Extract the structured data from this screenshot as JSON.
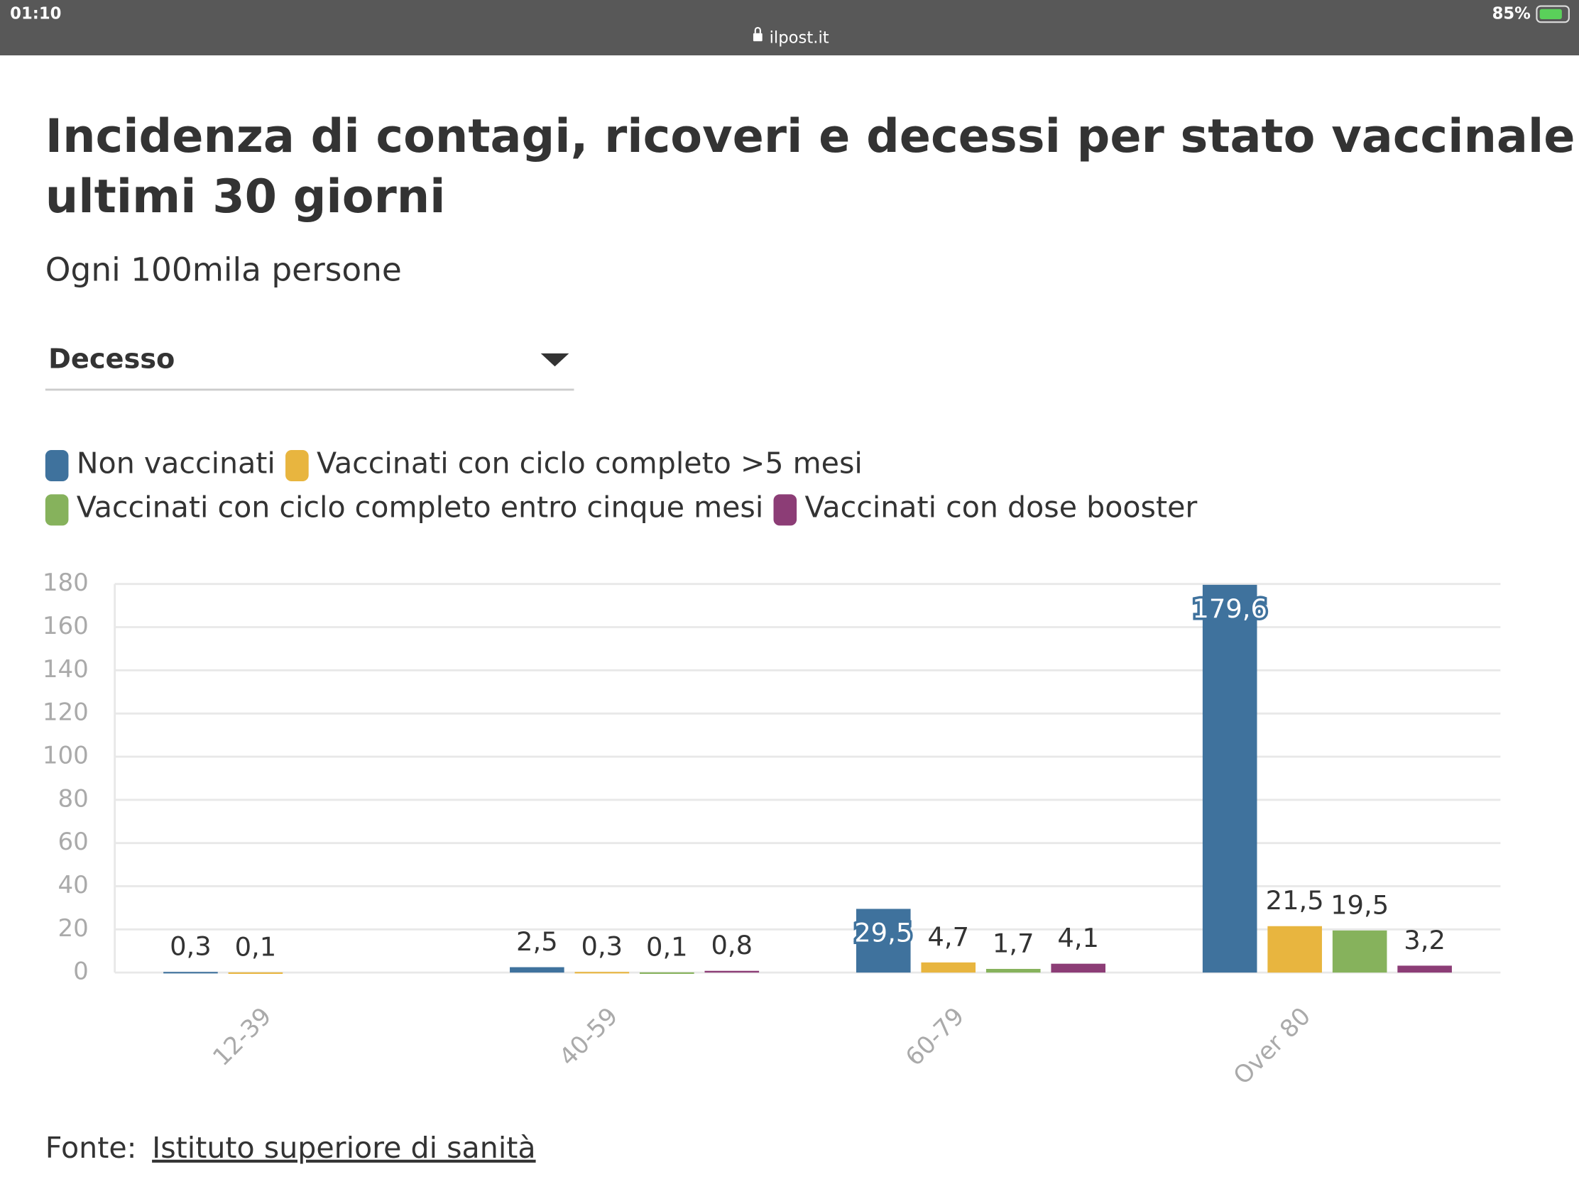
{
  "status_bar": {
    "time": "01:10",
    "url": "ilpost.it",
    "battery": "85%"
  },
  "filter": {
    "selected": "Decesso"
  },
  "source": {
    "prefix": "Fonte:",
    "link": "Istituto superiore di sanità"
  },
  "chart_data": {
    "type": "bar",
    "title": [
      "Incidenza di contagi, ricoveri e decessi per stato vaccinale negli",
      "ultimi 30 giorni"
    ],
    "subtitle": "Ogni 100mila persone",
    "categories": [
      "12-39",
      "40-59",
      "60-79",
      "Over 80"
    ],
    "series": [
      {
        "name": "Non vaccinati",
        "color": "#3f729d",
        "values": [
          0.3,
          2.5,
          29.5,
          179.6
        ],
        "value_labels": [
          "0,3",
          "2,5",
          "29,5",
          "179,6"
        ]
      },
      {
        "name": "Vaccinati con ciclo completo >5 mesi",
        "color": "#e8b53f",
        "values": [
          0.1,
          0.3,
          4.7,
          21.5
        ],
        "value_labels": [
          "0,1",
          "0,3",
          "4,7",
          "21,5"
        ]
      },
      {
        "name": "Vaccinati con ciclo completo entro cinque mesi",
        "color": "#86b25c",
        "values": [
          null,
          0.1,
          1.7,
          19.5
        ],
        "value_labels": [
          null,
          "0,1",
          "1,7",
          "19,5"
        ]
      },
      {
        "name": "Vaccinati con dose booster",
        "color": "#8c3d76",
        "values": [
          null,
          0.8,
          4.1,
          3.2
        ],
        "value_labels": [
          null,
          "0,8",
          "4,1",
          "3,2"
        ]
      }
    ],
    "ylim": [
      0,
      180
    ],
    "yticks": [
      0,
      20,
      40,
      60,
      80,
      100,
      120,
      140,
      160,
      180
    ],
    "grid": true
  }
}
